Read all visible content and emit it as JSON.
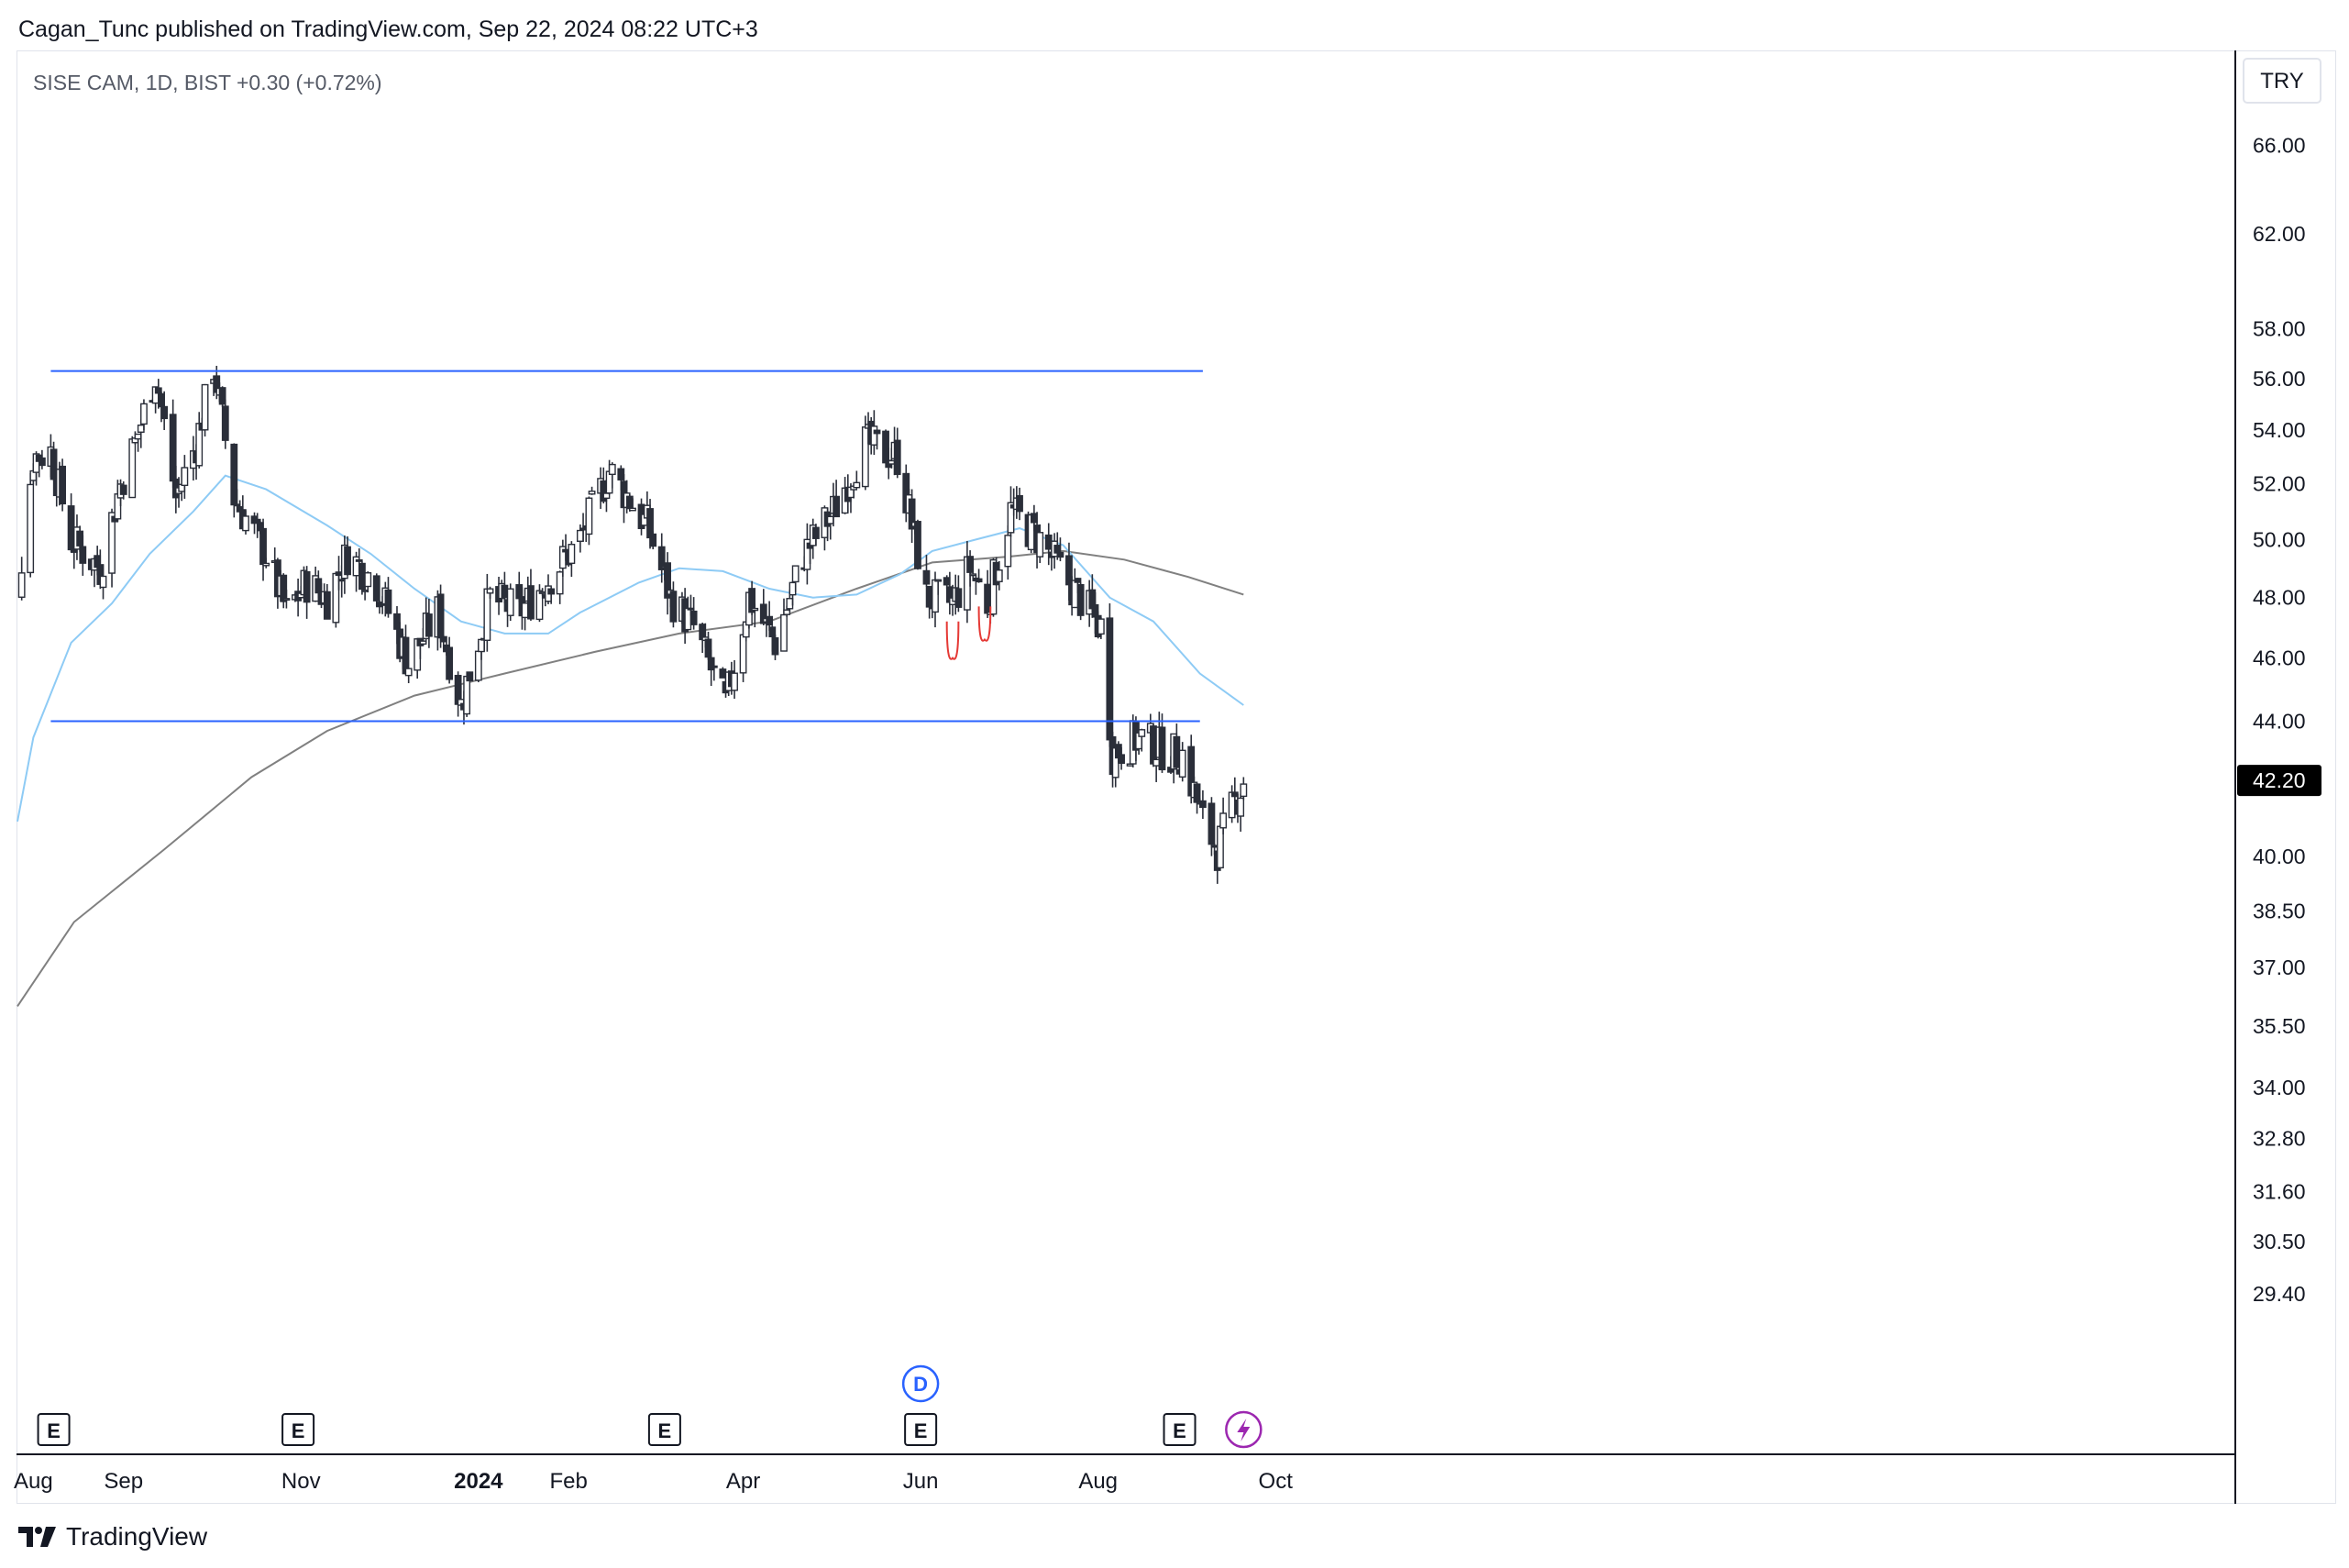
{
  "header": {
    "published_line": "Cagan_Tunc published on TradingView.com, Sep 22, 2024 08:22 UTC+3"
  },
  "symbol_line": "SISE CAM, 1D, BIST  +0.30 (+0.72%)",
  "currency": "TRY",
  "footer": {
    "brand": "TradingView",
    "logo_icon": "tradingview-logo-icon"
  },
  "markers": {
    "earnings_label": "E",
    "dividend_label": "D"
  },
  "colors": {
    "candle": "#2a2e39",
    "resistance": "#2962ff",
    "sma_short": "#8ecbf5",
    "sma_long": "#808080",
    "pattern": "#e53935",
    "last_price_bg": "#000000",
    "bolt": "#9c27b0",
    "dividend": "#2962ff"
  },
  "chart_data": {
    "type": "candlestick",
    "scale": "log",
    "y_ticks": [
      "66.00",
      "62.00",
      "58.00",
      "56.00",
      "54.00",
      "52.00",
      "50.00",
      "48.00",
      "46.00",
      "44.00",
      "40.00",
      "38.50",
      "37.00",
      "35.50",
      "34.00",
      "32.80",
      "31.60",
      "30.50",
      "29.40"
    ],
    "x_ticks": [
      {
        "label": "Aug",
        "date": "2023-08-01"
      },
      {
        "label": "Sep",
        "date": "2023-09-01"
      },
      {
        "label": "Nov",
        "date": "2023-11-01"
      },
      {
        "label": "2024",
        "date": "2024-01-01",
        "bold": true
      },
      {
        "label": "Feb",
        "date": "2024-02-01"
      },
      {
        "label": "Apr",
        "date": "2024-04-01"
      },
      {
        "label": "Jun",
        "date": "2024-06-01"
      },
      {
        "label": "Aug",
        "date": "2024-08-01"
      },
      {
        "label": "Oct",
        "date": "2024-10-01"
      }
    ],
    "last_price": "42.20",
    "horizontal_levels": [
      {
        "value": 56.3,
        "from": "2023-08-07",
        "to": "2024-09-06"
      },
      {
        "value": 44.0,
        "from": "2023-08-07",
        "to": "2024-09-05"
      }
    ],
    "price_anchors": [
      [
        "2023-07-20",
        47.5
      ],
      [
        "2023-07-27",
        48.5
      ],
      [
        "2023-08-01",
        53.0
      ],
      [
        "2023-08-07",
        53.2
      ],
      [
        "2023-08-14",
        50.0
      ],
      [
        "2023-08-24",
        49.0
      ],
      [
        "2023-08-31",
        52.0
      ],
      [
        "2023-09-05",
        53.5
      ],
      [
        "2023-09-12",
        56.2
      ],
      [
        "2023-09-19",
        51.5
      ],
      [
        "2023-09-26",
        53.5
      ],
      [
        "2023-10-02",
        56.5
      ],
      [
        "2023-10-09",
        51.5
      ],
      [
        "2023-10-20",
        49.5
      ],
      [
        "2023-10-27",
        47.5
      ],
      [
        "2023-11-03",
        48.5
      ],
      [
        "2023-11-10",
        48.0
      ],
      [
        "2023-11-17",
        49.5
      ],
      [
        "2023-11-27",
        48.5
      ],
      [
        "2023-12-08",
        45.8
      ],
      [
        "2023-12-18",
        47.5
      ],
      [
        "2023-12-26",
        44.5
      ],
      [
        "2024-01-05",
        48.0
      ],
      [
        "2024-01-15",
        47.5
      ],
      [
        "2024-01-24",
        48.5
      ],
      [
        "2024-02-05",
        50.0
      ],
      [
        "2024-02-15",
        52.5
      ],
      [
        "2024-02-28",
        50.5
      ],
      [
        "2024-03-07",
        48.0
      ],
      [
        "2024-03-15",
        47.0
      ],
      [
        "2024-03-26",
        44.5
      ],
      [
        "2024-04-03",
        48.0
      ],
      [
        "2024-04-12",
        46.5
      ],
      [
        "2024-04-22",
        49.5
      ],
      [
        "2024-05-02",
        51.0
      ],
      [
        "2024-05-13",
        53.5
      ],
      [
        "2024-05-24",
        53.0
      ],
      [
        "2024-06-03",
        48.0
      ],
      [
        "2024-06-12",
        47.8
      ],
      [
        "2024-06-18",
        49.0
      ],
      [
        "2024-06-24",
        47.8
      ],
      [
        "2024-07-02",
        51.0
      ],
      [
        "2024-07-12",
        50.0
      ],
      [
        "2024-07-22",
        48.5
      ],
      [
        "2024-08-02",
        47.0
      ],
      [
        "2024-08-06",
        43.0
      ],
      [
        "2024-08-15",
        43.5
      ],
      [
        "2024-08-26",
        43.0
      ],
      [
        "2024-08-30",
        43.0
      ],
      [
        "2024-09-06",
        41.0
      ],
      [
        "2024-09-11",
        40.2
      ],
      [
        "2024-09-20",
        42.2
      ]
    ],
    "sma_short": [
      [
        "2023-07-20",
        41.0
      ],
      [
        "2023-08-01",
        43.5
      ],
      [
        "2023-08-14",
        46.5
      ],
      [
        "2023-08-28",
        47.8
      ],
      [
        "2023-09-10",
        49.5
      ],
      [
        "2023-09-25",
        51.0
      ],
      [
        "2023-10-06",
        52.3
      ],
      [
        "2023-10-20",
        51.8
      ],
      [
        "2023-11-10",
        50.5
      ],
      [
        "2023-11-25",
        49.5
      ],
      [
        "2023-12-10",
        48.3
      ],
      [
        "2023-12-26",
        47.2
      ],
      [
        "2024-01-10",
        46.8
      ],
      [
        "2024-01-25",
        46.8
      ],
      [
        "2024-02-05",
        47.5
      ],
      [
        "2024-02-25",
        48.5
      ],
      [
        "2024-03-10",
        49.0
      ],
      [
        "2024-03-25",
        48.9
      ],
      [
        "2024-04-10",
        48.3
      ],
      [
        "2024-04-25",
        48.0
      ],
      [
        "2024-05-10",
        48.1
      ],
      [
        "2024-05-25",
        48.8
      ],
      [
        "2024-06-05",
        49.6
      ],
      [
        "2024-06-20",
        50.0
      ],
      [
        "2024-07-05",
        50.4
      ],
      [
        "2024-07-20",
        49.8
      ],
      [
        "2024-08-05",
        48.0
      ],
      [
        "2024-08-20",
        47.2
      ],
      [
        "2024-09-05",
        45.5
      ],
      [
        "2024-09-20",
        44.5
      ]
    ],
    "sma_long": [
      [
        "2023-07-20",
        36.0
      ],
      [
        "2023-08-15",
        38.2
      ],
      [
        "2023-09-15",
        40.2
      ],
      [
        "2023-10-15",
        42.3
      ],
      [
        "2023-11-10",
        43.7
      ],
      [
        "2023-12-10",
        44.8
      ],
      [
        "2024-01-10",
        45.5
      ],
      [
        "2024-02-10",
        46.2
      ],
      [
        "2024-03-10",
        46.8
      ],
      [
        "2024-04-10",
        47.2
      ],
      [
        "2024-05-10",
        48.3
      ],
      [
        "2024-06-05",
        49.2
      ],
      [
        "2024-07-01",
        49.4
      ],
      [
        "2024-07-20",
        49.6
      ],
      [
        "2024-08-10",
        49.3
      ],
      [
        "2024-09-01",
        48.7
      ],
      [
        "2024-09-20",
        48.1
      ]
    ],
    "pattern_arcs": [
      {
        "from": "2024-06-10",
        "to": "2024-06-14",
        "top": 47.2,
        "bottom": 46.0
      },
      {
        "from": "2024-06-21",
        "to": "2024-06-25",
        "top": 47.7,
        "bottom": 46.6
      }
    ],
    "earnings_dates": [
      "2023-08-08",
      "2023-10-31",
      "2024-03-05",
      "2024-06-01",
      "2024-08-29"
    ],
    "dividend_date": "2024-06-01",
    "bolt_date": "2024-09-20"
  }
}
